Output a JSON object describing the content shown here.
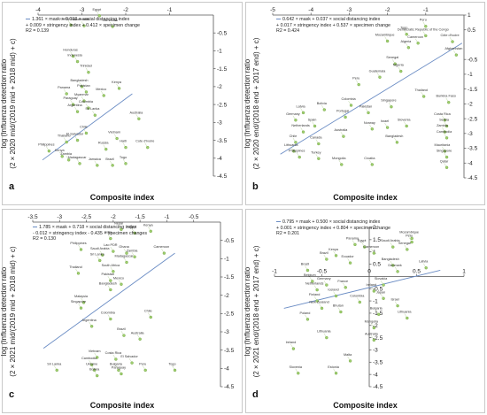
{
  "chart_data": [
    {
      "type": "scatter",
      "panel_label": "a",
      "equation": [
        "1.361 × mask + 0.013 × social distancing index",
        "+ 0.009 × stringency index + 0.412 × specimen change",
        "R2 = 0.139"
      ],
      "ylabel": [
        "log (Influenza detection ratio",
        "(2 × 2020 mid/(2019 mid + 2018 mid) + c)"
      ],
      "xlabel": "Composite index",
      "xlim": [
        -4,
        0
      ],
      "xticks": [
        -4,
        -3,
        -2,
        -1
      ],
      "x_axis_at_top": true,
      "ylim": [
        -4.5,
        0
      ],
      "yticks": [
        -4.5,
        -4,
        -3.5,
        -3,
        -2.5,
        -2,
        -1.5,
        -1,
        -0.5
      ],
      "fit": [
        [
          -3.9,
          -4.05
        ],
        [
          -1.85,
          -2.2
        ]
      ],
      "points": [
        {
          "x": -2.6,
          "y": -0.02,
          "label": "Egypt"
        },
        {
          "x": -2.95,
          "y": -0.3,
          "label": "Guatemala"
        },
        {
          "x": -2.3,
          "y": -0.32,
          "label": "Cambodia"
        },
        {
          "x": -3.25,
          "y": -0.28,
          "label": "Cameroon"
        },
        {
          "x": -3.2,
          "y": -1.15,
          "label": "Honduras"
        },
        {
          "x": -3.1,
          "y": -1.3,
          "label": "Indonesia"
        },
        {
          "x": -2.85,
          "y": -1.6,
          "label": "Trinidad"
        },
        {
          "x": -2.15,
          "y": -2.05,
          "label": "Kenya"
        },
        {
          "x": -3.0,
          "y": -2.0,
          "label": "Bangladesh"
        },
        {
          "x": -3.35,
          "y": -2.2,
          "label": "Panama"
        },
        {
          "x": -2.9,
          "y": -2.15,
          "label": "Pakistan"
        },
        {
          "x": -2.5,
          "y": -2.25,
          "label": "Mexico"
        },
        {
          "x": -2.95,
          "y": -2.4,
          "label": "Myanmar"
        },
        {
          "x": -3.2,
          "y": -2.5,
          "label": "Paraguay"
        },
        {
          "x": -2.85,
          "y": -2.6,
          "label": "Colombia"
        },
        {
          "x": -3.1,
          "y": -2.7,
          "label": "Argentina"
        },
        {
          "x": -2.7,
          "y": -2.8,
          "label": "Sri Lanka"
        },
        {
          "x": -1.7,
          "y": -2.9,
          "label": "Australia"
        },
        {
          "x": -2.9,
          "y": -3.3,
          "label": "Chile"
        },
        {
          "x": -3.1,
          "y": -3.5,
          "label": "El Salvador"
        },
        {
          "x": -2.2,
          "y": -3.45,
          "label": "Vietnam"
        },
        {
          "x": -3.35,
          "y": -3.55,
          "label": "Thailand"
        },
        {
          "x": -3.75,
          "y": -3.8,
          "label": "Philippines"
        },
        {
          "x": -2.45,
          "y": -3.75,
          "label": "Russia"
        },
        {
          "x": -2.0,
          "y": -3.7,
          "label": "Haiti"
        },
        {
          "x": -1.5,
          "y": -3.7,
          "label": "Cote d'Ivoire"
        },
        {
          "x": -3.45,
          "y": -3.95,
          "label": "Kenya"
        },
        {
          "x": -3.3,
          "y": -4.05,
          "label": "Zambia"
        },
        {
          "x": -3.05,
          "y": -4.15,
          "label": "Madagascar"
        },
        {
          "x": -2.65,
          "y": -4.2,
          "label": "Jamaica"
        },
        {
          "x": -2.3,
          "y": -4.2,
          "label": "Brazil"
        },
        {
          "x": -2.0,
          "y": -4.15,
          "label": "Togo"
        }
      ]
    },
    {
      "type": "scatter",
      "panel_label": "b",
      "equation": [
        "0.642 × mask + 0.037 × social distancing index",
        "+ 0.017 × stringency index + 0.537 × specimen change",
        "R2 = 0.424"
      ],
      "ylabel": [
        "log (Influenza detection ratio",
        "(2 × 2020 end/(2018 end + 2017 end) + c)"
      ],
      "xlabel": "Composite index",
      "xlim": [
        -5,
        0
      ],
      "xticks": [
        -5,
        -4,
        -3,
        -2,
        -1
      ],
      "x_axis_at_top": true,
      "ylim": [
        -4.5,
        1
      ],
      "yticks": [
        -4.5,
        -4,
        -3.5,
        -3,
        -2.5,
        -2,
        -1.5,
        -1,
        -0.5,
        0.5,
        1
      ],
      "fit": [
        [
          -4.8,
          -3.7
        ],
        [
          -0.05,
          0.05
        ]
      ],
      "points": [
        {
          "x": -1.0,
          "y": 0.62,
          "label": "Peru"
        },
        {
          "x": -1.5,
          "y": 0.35,
          "label": "Togo"
        },
        {
          "x": -1.0,
          "y": 0.3,
          "label": "Democratic Republic of the Congo"
        },
        {
          "x": -0.3,
          "y": 0.1,
          "label": "Côte d'Ivoire"
        },
        {
          "x": -2.0,
          "y": 0.12,
          "label": "Mozambique"
        },
        {
          "x": -1.2,
          "y": 0.05,
          "label": "Cameroon"
        },
        {
          "x": -0.2,
          "y": -0.35,
          "label": "Afghanistan"
        },
        {
          "x": -1.45,
          "y": -0.1,
          "label": "Algeria"
        },
        {
          "x": -1.8,
          "y": -0.65,
          "label": "Senegal"
        },
        {
          "x": -1.65,
          "y": -0.9,
          "label": "Nigeria"
        },
        {
          "x": -2.2,
          "y": -1.1,
          "label": "Guatemala"
        },
        {
          "x": -2.75,
          "y": -1.35,
          "label": "Peru"
        },
        {
          "x": -1.05,
          "y": -1.75,
          "label": "Thailand"
        },
        {
          "x": -0.4,
          "y": -1.95,
          "label": "Burkina Faso"
        },
        {
          "x": -1.9,
          "y": -2.1,
          "label": "Singapore"
        },
        {
          "x": -2.95,
          "y": -2.05,
          "label": "Colombia"
        },
        {
          "x": -3.65,
          "y": -2.2,
          "label": "Bolivia"
        },
        {
          "x": -2.5,
          "y": -2.3,
          "label": "Pakistan"
        },
        {
          "x": -4.2,
          "y": -2.3,
          "label": "Latvia"
        },
        {
          "x": -3.1,
          "y": -2.45,
          "label": "Portugal"
        },
        {
          "x": -4.4,
          "y": -2.55,
          "label": "Germany"
        },
        {
          "x": -3.9,
          "y": -2.75,
          "label": "Spain"
        },
        {
          "x": -4.2,
          "y": -2.95,
          "label": "Netherlands"
        },
        {
          "x": -2.4,
          "y": -2.85,
          "label": "Norway"
        },
        {
          "x": -2.0,
          "y": -2.8,
          "label": "Israel"
        },
        {
          "x": -1.5,
          "y": -2.75,
          "label": "Slovenia"
        },
        {
          "x": -0.5,
          "y": -2.55,
          "label": "Costa Rica"
        },
        {
          "x": -0.45,
          "y": -2.75,
          "label": "Serbia"
        },
        {
          "x": -0.5,
          "y": -2.95,
          "label": "Zambia"
        },
        {
          "x": -0.45,
          "y": -3.15,
          "label": "Cambodia"
        },
        {
          "x": -4.4,
          "y": -3.3,
          "label": "Chile"
        },
        {
          "x": -3.15,
          "y": -3.1,
          "label": "Australia"
        },
        {
          "x": -3.8,
          "y": -3.35,
          "label": "Canada"
        },
        {
          "x": -1.75,
          "y": -3.3,
          "label": "Bangladesh"
        },
        {
          "x": -4.45,
          "y": -3.6,
          "label": "Lithuania"
        },
        {
          "x": -4.3,
          "y": -3.8,
          "label": "Philippines"
        },
        {
          "x": -3.8,
          "y": -3.85,
          "label": "Turkey"
        },
        {
          "x": -3.2,
          "y": -4.05,
          "label": "Mongolia"
        },
        {
          "x": -2.4,
          "y": -4.05,
          "label": "Croatia"
        },
        {
          "x": -0.5,
          "y": -3.6,
          "label": "Mauritania"
        },
        {
          "x": -0.45,
          "y": -3.8,
          "label": "Singapore"
        },
        {
          "x": -0.45,
          "y": -4.15,
          "label": "Qatar"
        }
      ]
    },
    {
      "type": "scatter",
      "panel_label": "c",
      "equation": [
        "1.785 × mask + 0.718 × social distancing index",
        "- 0.012 × stringency index - 0.435 × specimen changes",
        "R2 = 0.130"
      ],
      "ylabel": [
        "log (Influenza detection ratio",
        "(2 × 2021 mid/(2019 mid + 2018 mid) + c)"
      ],
      "xlabel": "Composite index",
      "xlim": [
        -3.5,
        0
      ],
      "xticks": [
        -3.5,
        -3,
        -2.5,
        -2,
        -1.5,
        -1,
        -0.5
      ],
      "x_axis_at_top": true,
      "ylim": [
        -4.5,
        0
      ],
      "yticks": [
        -4.5,
        -4,
        -3.5,
        -3,
        -2.5,
        -2,
        -1.5,
        -1,
        -0.5
      ],
      "fit": [
        [
          -3.3,
          -3.45
        ],
        [
          -0.85,
          -0.85
        ]
      ],
      "points": [
        {
          "x": -1.85,
          "y": -0.2,
          "label": "Nepal"
        },
        {
          "x": -1.6,
          "y": -0.3,
          "label": "Egypt"
        },
        {
          "x": -1.3,
          "y": -0.25,
          "label": "Kenya"
        },
        {
          "x": -2.05,
          "y": -0.45,
          "label": "India"
        },
        {
          "x": -2.6,
          "y": -0.75,
          "label": "Philippines"
        },
        {
          "x": -2.2,
          "y": -0.9,
          "label": "Saudi Arabia"
        },
        {
          "x": -2.0,
          "y": -0.8,
          "label": "Lao PDR"
        },
        {
          "x": -1.75,
          "y": -0.85,
          "label": "Ghana"
        },
        {
          "x": -1.6,
          "y": -0.95,
          "label": "Zambia"
        },
        {
          "x": -1.05,
          "y": -0.85,
          "label": "Cameroon"
        },
        {
          "x": -1.75,
          "y": -1.1,
          "label": "Madagascar"
        },
        {
          "x": -2.25,
          "y": -1.05,
          "label": "Sri Lanka"
        },
        {
          "x": -2.65,
          "y": -1.4,
          "label": "Thailand"
        },
        {
          "x": -2.0,
          "y": -1.35,
          "label": "South Africa"
        },
        {
          "x": -2.05,
          "y": -1.6,
          "label": "Pakistan"
        },
        {
          "x": -2.05,
          "y": -1.85,
          "label": "Bangladesh"
        },
        {
          "x": -1.85,
          "y": -1.7,
          "label": "Mexico"
        },
        {
          "x": -2.55,
          "y": -2.2,
          "label": "Malaysia"
        },
        {
          "x": -2.6,
          "y": -2.35,
          "label": "Singapore"
        },
        {
          "x": -2.05,
          "y": -2.65,
          "label": "Colombia"
        },
        {
          "x": -1.3,
          "y": -2.6,
          "label": "Chile"
        },
        {
          "x": -2.4,
          "y": -2.85,
          "label": "Argentina"
        },
        {
          "x": -1.8,
          "y": -3.1,
          "label": "Brazil"
        },
        {
          "x": -1.5,
          "y": -3.2,
          "label": "Australia"
        },
        {
          "x": -2.3,
          "y": -3.7,
          "label": "Vietnam"
        },
        {
          "x": -1.95,
          "y": -3.75,
          "label": "Costa Rica"
        },
        {
          "x": -1.65,
          "y": -3.85,
          "label": "El Salvador"
        },
        {
          "x": -2.4,
          "y": -3.9,
          "label": "Cambodia"
        },
        {
          "x": -3.05,
          "y": -4.05,
          "label": "Sri Lanka"
        },
        {
          "x": -2.35,
          "y": -4.05,
          "label": "Ukraine"
        },
        {
          "x": -1.9,
          "y": -4.05,
          "label": "Bulgaria"
        },
        {
          "x": -2.3,
          "y": -4.2,
          "label": "Bolivia"
        },
        {
          "x": -1.85,
          "y": -4.15,
          "label": "Paraguay"
        },
        {
          "x": -1.4,
          "y": -4.05,
          "label": "Peru"
        },
        {
          "x": -0.85,
          "y": -4.05,
          "label": "Togo"
        }
      ]
    },
    {
      "type": "scatter",
      "panel_label": "d",
      "equation": [
        "0.795 × mask + 0.500 × social distancing index",
        "+ 0.001 × stringency index + 0.804 × specimen change",
        "R2 = 0.201"
      ],
      "ylabel": [
        "log (Influenza detection ratio",
        "(2 × 2021 end/(2018 end + 2017 end) + c)"
      ],
      "xlabel": "Composite index",
      "xlim": [
        -1,
        1
      ],
      "xticks": [
        -1,
        -0.5,
        0,
        0.5,
        1
      ],
      "x_axis_at": 0,
      "ylim": [
        -4.5,
        2
      ],
      "yticks": [
        -4.5,
        -4,
        -3.5,
        -3,
        -2.5,
        -2,
        -1.5,
        -1,
        -0.5,
        0.5,
        1,
        1.5,
        2
      ],
      "fit": [
        [
          -0.9,
          -1.3
        ],
        [
          0.75,
          0.25
        ]
      ],
      "points": [
        {
          "x": 0.45,
          "y": 1.55,
          "label": "Mozambique"
        },
        {
          "x": 0.45,
          "y": 1.4,
          "label": "Peru"
        },
        {
          "x": -0.15,
          "y": 1.3,
          "label": "Panama"
        },
        {
          "x": -0.05,
          "y": 1.2,
          "label": "Egypt"
        },
        {
          "x": 0.25,
          "y": 1.2,
          "label": "Saudi Arabia"
        },
        {
          "x": 0.4,
          "y": 1.1,
          "label": "Senegal"
        },
        {
          "x": 0.05,
          "y": 0.95,
          "label": "Cameroon"
        },
        {
          "x": -0.35,
          "y": 0.85,
          "label": "Kenya"
        },
        {
          "x": -0.45,
          "y": 0.7,
          "label": "Brazil"
        },
        {
          "x": -0.2,
          "y": 0.55,
          "label": "Ecuador"
        },
        {
          "x": 0.25,
          "y": 0.45,
          "label": "Bangladesh"
        },
        {
          "x": 0.6,
          "y": 0.35,
          "label": "Latvia"
        },
        {
          "x": 0.3,
          "y": 0.2,
          "label": "Denmark"
        },
        {
          "x": -0.65,
          "y": 0.25,
          "label": "Brazil"
        },
        {
          "x": -0.6,
          "y": -0.2,
          "label": "Belgium"
        },
        {
          "x": -0.45,
          "y": -0.35,
          "label": "Germany"
        },
        {
          "x": -0.25,
          "y": -0.45,
          "label": "France"
        },
        {
          "x": -0.55,
          "y": -0.55,
          "label": "Netherlands"
        },
        {
          "x": 0.15,
          "y": -0.35,
          "label": "Slovakia"
        },
        {
          "x": 0.05,
          "y": -0.6,
          "label": "Ireland"
        },
        {
          "x": -0.35,
          "y": -0.8,
          "label": "Iceland"
        },
        {
          "x": -0.55,
          "y": -1.0,
          "label": "Finland"
        },
        {
          "x": 0.15,
          "y": -0.9,
          "label": "Japan"
        },
        {
          "x": -0.1,
          "y": -1.05,
          "label": "Colombia"
        },
        {
          "x": -0.5,
          "y": -1.3,
          "label": "New Zealand"
        },
        {
          "x": -0.3,
          "y": -1.45,
          "label": "Bhutan"
        },
        {
          "x": 0.1,
          "y": -1.55,
          "label": "Bulgaria"
        },
        {
          "x": 0.3,
          "y": -1.2,
          "label": "Israel"
        },
        {
          "x": 0.4,
          "y": -1.7,
          "label": "Lithuania"
        },
        {
          "x": -0.65,
          "y": -1.75,
          "label": "Poland"
        },
        {
          "x": 0.05,
          "y": -2.1,
          "label": "Mongolia"
        },
        {
          "x": -0.45,
          "y": -2.5,
          "label": "Lithuania"
        },
        {
          "x": 0.05,
          "y": -2.6,
          "label": "Australia"
        },
        {
          "x": -0.8,
          "y": -2.95,
          "label": "Ireland"
        },
        {
          "x": -0.2,
          "y": -3.45,
          "label": "Malta"
        },
        {
          "x": -0.75,
          "y": -3.95,
          "label": "Slovenia"
        },
        {
          "x": -0.35,
          "y": -3.95,
          "label": "Estonia"
        }
      ]
    }
  ]
}
